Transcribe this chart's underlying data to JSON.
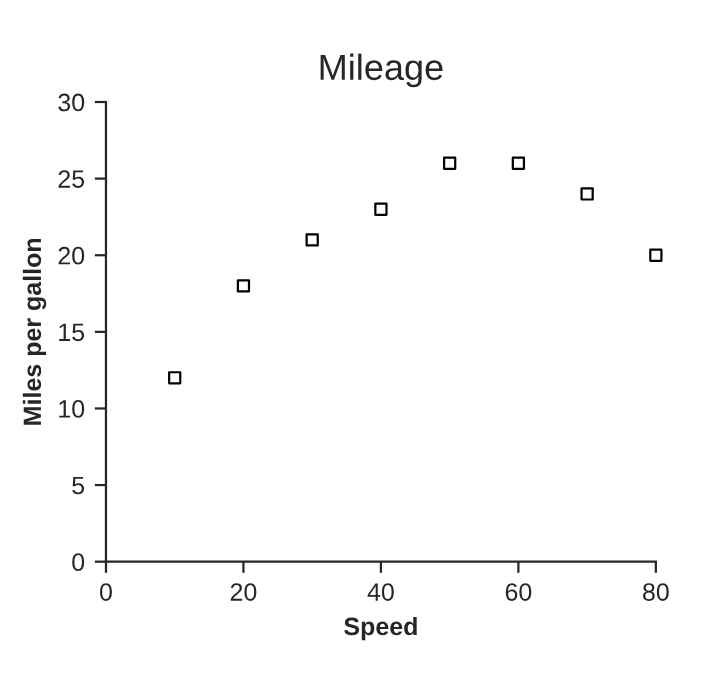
{
  "chart_data": {
    "type": "scatter",
    "title": "Mileage",
    "xlabel": "Speed",
    "ylabel": "Miles per gallon",
    "x": [
      10,
      20,
      30,
      40,
      50,
      60,
      70,
      80
    ],
    "values": [
      12,
      18,
      21,
      23,
      26,
      26,
      24,
      20
    ],
    "color": "#000000",
    "marker": "square",
    "xlim": [
      0,
      80
    ],
    "xticks": [
      0,
      20,
      40,
      60,
      80
    ],
    "ylim": [
      0,
      30
    ],
    "yticks": [
      0,
      5,
      10,
      15,
      20,
      25,
      30
    ],
    "grid": false
  }
}
